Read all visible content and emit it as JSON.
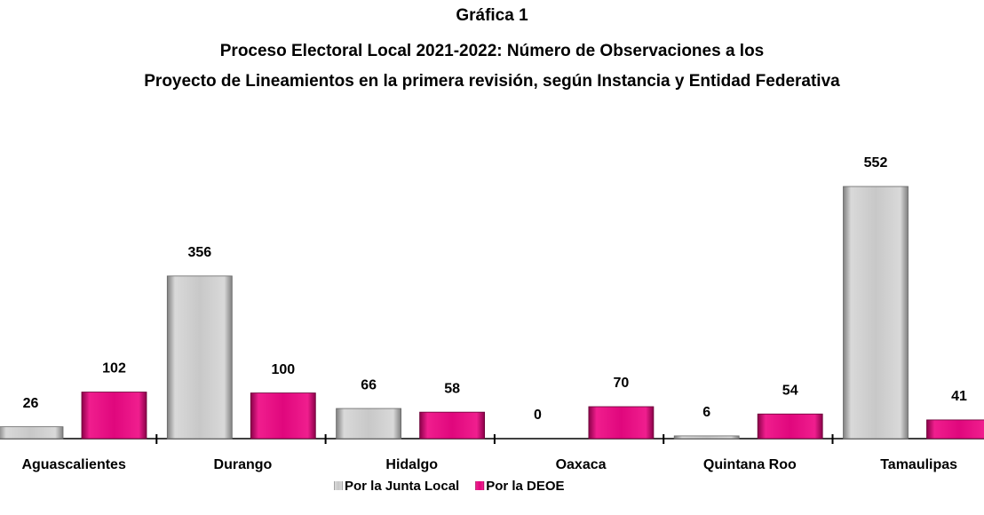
{
  "chart_data": {
    "type": "bar",
    "title": "Gráfica 1",
    "subtitle": [
      "Proceso Electoral Local 2021-2022: Número de Observaciones a los",
      "Proyecto de Lineamientos en la primera revisión, según Instancia y Entidad Federativa"
    ],
    "categories": [
      "Aguascalientes",
      "Durango",
      "Hidalgo",
      "Oaxaca",
      "Quintana Roo",
      "Tamaulipas"
    ],
    "series": [
      {
        "name": "Por la Junta Local",
        "color": "#bfbfbf",
        "values": [
          26,
          356,
          66,
          0,
          6,
          552
        ]
      },
      {
        "name": "Por la DEOE",
        "color": "#e0077d",
        "values": [
          102,
          100,
          58,
          70,
          54,
          41
        ]
      }
    ],
    "legend": "bottom"
  }
}
